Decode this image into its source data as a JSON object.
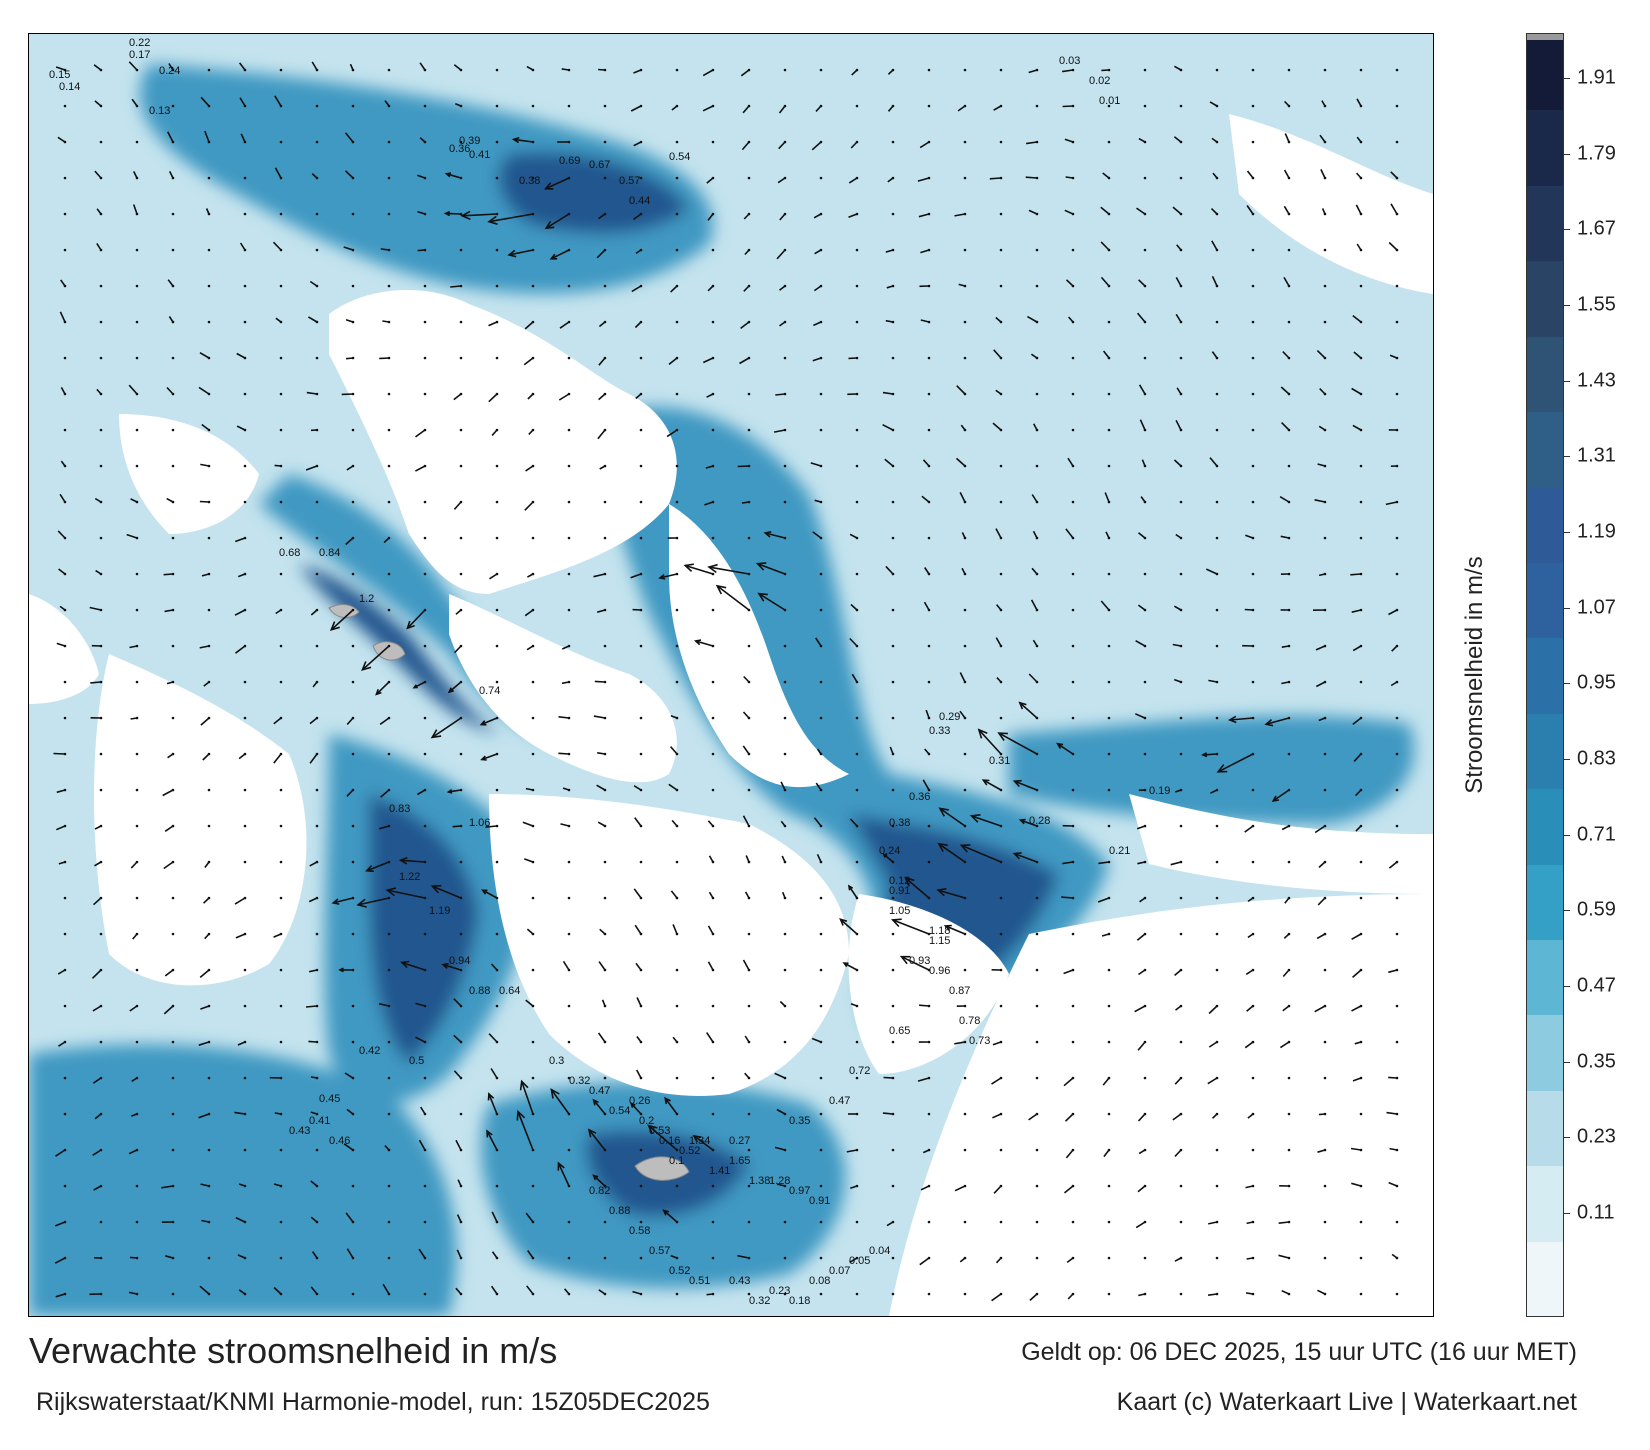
{
  "colors": {
    "water_light": "#c4e3ee",
    "water_mid": "#3f99c2",
    "water_dark": "#24578f",
    "land": "#ffffff",
    "island": "#bdbdbd"
  },
  "legend": {
    "title": "Stroomsnelheid in m/s",
    "ticks": [
      "1.91",
      "1.79",
      "1.67",
      "1.55",
      "1.43",
      "1.31",
      "1.19",
      "1.07",
      "0.95",
      "0.83",
      "0.71",
      "0.59",
      "0.47",
      "0.35",
      "0.23",
      "0.11"
    ],
    "bands": [
      "#eef6f9",
      "#d6ecf3",
      "#b7dbe9",
      "#8ccbe0",
      "#5db6d3",
      "#34a0c6",
      "#2a8fb8",
      "#2a7fae",
      "#2b70a6",
      "#2d629e",
      "#2e5a97",
      "#2f5e86",
      "#2e5375",
      "#2a4466",
      "#223659",
      "#1a2849",
      "#131b38"
    ]
  },
  "map": {
    "speed_labels": [
      {
        "text": "0.22"
      },
      {
        "text": "0.17"
      },
      {
        "text": "0.24"
      },
      {
        "text": "0.15"
      },
      {
        "text": "0.14"
      },
      {
        "text": "0.13"
      },
      {
        "text": "0.39"
      },
      {
        "text": "0.41"
      },
      {
        "text": "0.36"
      },
      {
        "text": "0.69"
      },
      {
        "text": "0.67"
      },
      {
        "text": "0.57"
      },
      {
        "text": "0.54"
      },
      {
        "text": "0.44"
      },
      {
        "text": "0.38"
      },
      {
        "text": "0.68"
      },
      {
        "text": "0.84"
      },
      {
        "text": "1.2"
      },
      {
        "text": "0.74"
      },
      {
        "text": "0.83"
      },
      {
        "text": "1.06"
      },
      {
        "text": "1.22"
      },
      {
        "text": "1.19"
      },
      {
        "text": "0.94"
      },
      {
        "text": "0.88"
      },
      {
        "text": "0.64"
      },
      {
        "text": "0.5"
      },
      {
        "text": "0.45"
      },
      {
        "text": "0.41"
      },
      {
        "text": "0.43"
      },
      {
        "text": "0.46"
      },
      {
        "text": "0.42"
      },
      {
        "text": "0.33"
      },
      {
        "text": "0.29"
      },
      {
        "text": "0.31"
      },
      {
        "text": "0.36"
      },
      {
        "text": "0.38"
      },
      {
        "text": "0.24"
      },
      {
        "text": "0.28"
      },
      {
        "text": "0.21"
      },
      {
        "text": "0.19"
      },
      {
        "text": "0.12"
      },
      {
        "text": "0.91"
      },
      {
        "text": "1.05"
      },
      {
        "text": "1.18"
      },
      {
        "text": "1.15"
      },
      {
        "text": "0.93"
      },
      {
        "text": "0.96"
      },
      {
        "text": "0.87"
      },
      {
        "text": "0.78"
      },
      {
        "text": "0.73"
      },
      {
        "text": "0.65"
      },
      {
        "text": "0.72"
      },
      {
        "text": "0.47"
      },
      {
        "text": "0.35"
      },
      {
        "text": "0.27"
      },
      {
        "text": "0.52"
      },
      {
        "text": "0.53"
      },
      {
        "text": "0.54"
      },
      {
        "text": "0.47"
      },
      {
        "text": "0.32"
      },
      {
        "text": "0.3"
      },
      {
        "text": "0.26"
      },
      {
        "text": "0.2"
      },
      {
        "text": "0.16"
      },
      {
        "text": "0.1"
      },
      {
        "text": "1.34"
      },
      {
        "text": "1.41"
      },
      {
        "text": "1.65"
      },
      {
        "text": "1.38"
      },
      {
        "text": "1.28"
      },
      {
        "text": "0.97"
      },
      {
        "text": "0.91"
      },
      {
        "text": "0.82"
      },
      {
        "text": "0.88"
      },
      {
        "text": "0.58"
      },
      {
        "text": "0.57"
      },
      {
        "text": "0.52"
      },
      {
        "text": "0.51"
      },
      {
        "text": "0.43"
      },
      {
        "text": "0.32"
      },
      {
        "text": "0.23"
      },
      {
        "text": "0.18"
      },
      {
        "text": "0.08"
      },
      {
        "text": "0.07"
      },
      {
        "text": "0.05"
      },
      {
        "text": "0.04"
      },
      {
        "text": "0.03"
      },
      {
        "text": "0.02"
      },
      {
        "text": "0.01"
      }
    ]
  },
  "footer": {
    "title": "Verwachte stroomsnelheid in m/s",
    "model": "Rijkswaterstaat/KNMI Harmonie-model, run: 15Z05DEC2025",
    "valid": "Geldt op: 06 DEC 2025, 15 uur UTC (16 uur MET)",
    "credit": "Kaart (c) Waterkaart Live | Waterkaart.net"
  }
}
